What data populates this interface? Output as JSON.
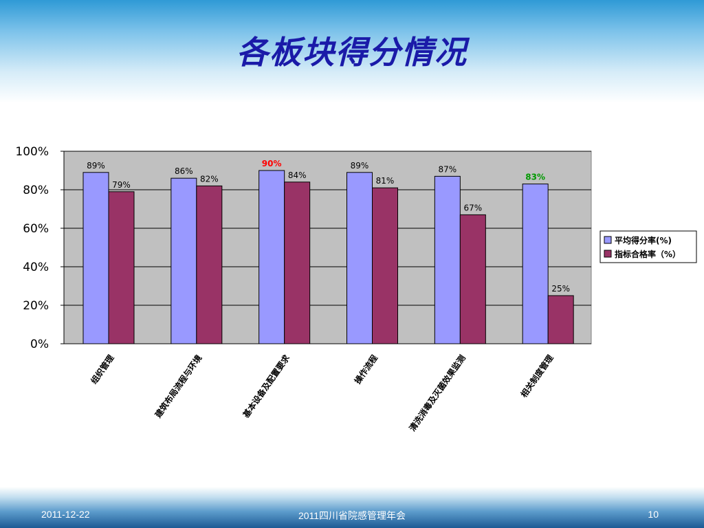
{
  "slide": {
    "title": "各板块得分情况",
    "footer_date": "2011-12-22",
    "footer_center": "2011四川省院感管理年会",
    "footer_page": "10"
  },
  "chart_data": {
    "type": "bar",
    "title": "",
    "xlabel": "",
    "ylabel": "",
    "categories": [
      "组织管理",
      "建筑布局流程与环境",
      "基本设备及配置要求",
      "操作流程",
      "清洗消毒及灭菌效果监测",
      "相关制度管理"
    ],
    "series": [
      {
        "name": "平均得分率(%)",
        "color": "#9999ff",
        "values": [
          89,
          86,
          90,
          89,
          87,
          83
        ],
        "labels": [
          "89%",
          "86%",
          "90%",
          "89%",
          "87%",
          "83%"
        ],
        "label_colors": [
          "#000000",
          "#000000",
          "#ff0000",
          "#000000",
          "#000000",
          "#009900"
        ]
      },
      {
        "name": "指标合格率（%）",
        "color": "#993366",
        "values": [
          79,
          82,
          84,
          81,
          67,
          25
        ],
        "labels": [
          "79%",
          "82%",
          "84%",
          "81%",
          "67%",
          "25%"
        ],
        "label_colors": [
          "#000000",
          "#000000",
          "#000000",
          "#000000",
          "#000000",
          "#000000"
        ]
      }
    ],
    "yticks": [
      "0%",
      "20%",
      "40%",
      "60%",
      "80%",
      "100%"
    ],
    "ylim": [
      0,
      100
    ],
    "grid": true,
    "legend": "right",
    "plot_background": "#c0c0c0"
  }
}
